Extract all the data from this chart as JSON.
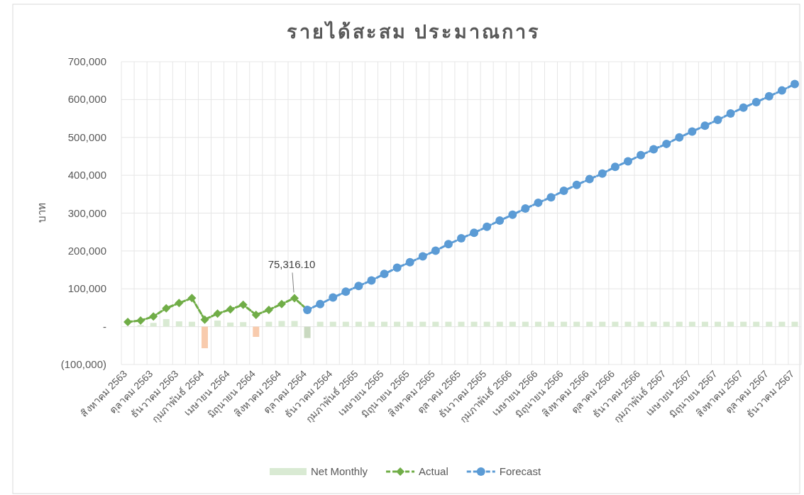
{
  "chart_data": {
    "type": "line",
    "title": "รายได้สะสม ประมาณการ",
    "ylabel": "บาท",
    "categories": [
      "สิงหาคม 2563",
      null,
      "ตุลาคม 2563",
      null,
      "ธันวาคม 2563",
      null,
      "กุมภาพันธ์ 2564",
      null,
      "เมษายน 2564",
      null,
      "มิถุนายน 2564",
      null,
      "สิงหาคม 2564",
      null,
      "ตุลาคม 2564",
      null,
      "ธันวาคม 2564",
      null,
      "กุมภาพันธ์ 2565",
      null,
      "เมษายน 2565",
      null,
      "มิถุนายน 2565",
      null,
      "สิงหาคม 2565",
      null,
      "ตุลาคม 2565",
      null,
      "ธันวาคม 2565",
      null,
      "กุมภาพันธ์ 2566",
      null,
      "เมษายน 2566",
      null,
      "มิถุนายน 2566",
      null,
      "สิงหาคม 2566",
      null,
      "ตุลาคม 2566",
      null,
      "ธันวาคม 2566",
      null,
      "กุมภาพันธ์ 2567",
      null,
      "เมษายน 2567",
      null,
      "มิถุนายน 2567",
      null,
      "สิงหาคม 2567",
      null,
      "ตุลาคม 2567",
      null,
      "ธันวาคม 2567"
    ],
    "series": [
      {
        "name": "Net Monthly",
        "type": "bar",
        "colors": [
          null,
          "#d9ead3",
          "#d9ead3",
          "#d9ead3",
          "#d9ead3",
          "#d9ead3",
          "#f8cbad",
          "#d9ead3",
          "#d9ead3",
          "#d9ead3",
          "#f8cbad",
          "#d9ead3",
          "#d9ead3",
          "#d9ead3",
          "#c9d9c0",
          "#d9ead3",
          "#d9ead3",
          "#d9ead3",
          "#d9ead3",
          "#d9ead3",
          "#d9ead3",
          "#d9ead3",
          "#d9ead3",
          "#d9ead3",
          "#d9ead3",
          "#d9ead3",
          "#d9ead3",
          "#d9ead3",
          "#d9ead3",
          "#d9ead3",
          "#d9ead3",
          "#d9ead3",
          "#d9ead3",
          "#d9ead3",
          "#d9ead3",
          "#d9ead3",
          "#d9ead3",
          "#d9ead3",
          "#d9ead3",
          "#d9ead3",
          "#d9ead3",
          "#d9ead3",
          "#d9ead3",
          "#d9ead3",
          "#d9ead3",
          "#d9ead3",
          "#d9ead3",
          "#d9ead3",
          "#d9ead3",
          "#d9ead3",
          "#d9ead3",
          "#d9ead3",
          "#d9ead3"
        ],
        "color": "#d9ead3",
        "values": [
          null,
          4000,
          10000,
          20000,
          14000,
          13000,
          -57000,
          16000,
          11000,
          12000,
          -27000,
          13000,
          15000,
          15000,
          -30000,
          13000,
          13000,
          13000,
          13000,
          13000,
          13000,
          13000,
          13000,
          13000,
          13000,
          13000,
          13000,
          13000,
          13000,
          13000,
          13000,
          13000,
          13000,
          13000,
          13000,
          13000,
          13000,
          13000,
          13000,
          13000,
          13000,
          13000,
          13000,
          13000,
          13000,
          13000,
          13000,
          13000,
          13000,
          13000,
          13000,
          13000,
          13000
        ]
      },
      {
        "name": "Actual",
        "color": "#70ad47",
        "marker": "diamond",
        "line_style": "dashed",
        "values": [
          12500,
          16300,
          26800,
          48700,
          62400,
          75500,
          18700,
          34300,
          45500,
          58000,
          31300,
          44400,
          59900,
          75316.1,
          44400,
          null,
          null,
          null,
          null,
          null,
          null,
          null,
          null,
          null,
          null,
          null,
          null,
          null,
          null,
          null,
          null,
          null,
          null,
          null,
          null,
          null,
          null,
          null,
          null,
          null,
          null,
          null,
          null,
          null,
          null,
          null,
          null,
          null,
          null,
          null,
          null,
          null,
          null
        ],
        "value_labels": [
          null,
          null,
          null,
          null,
          null,
          null,
          null,
          null,
          null,
          null,
          null,
          null,
          null,
          "75,316.10",
          null,
          null,
          null,
          null,
          null,
          null,
          null,
          null,
          null,
          null,
          null,
          null,
          null,
          null,
          null,
          null,
          null,
          null,
          null,
          null,
          null,
          null,
          null,
          null,
          null,
          null,
          null,
          null,
          null,
          null,
          null,
          null,
          null,
          null,
          null,
          null,
          null,
          null,
          null
        ]
      },
      {
        "name": "Forecast",
        "color": "#5b9bd5",
        "marker": "circle",
        "line_style": "dashed",
        "values": [
          null,
          null,
          null,
          null,
          null,
          null,
          null,
          null,
          null,
          null,
          null,
          null,
          null,
          null,
          44400,
          59800,
          76900,
          92300,
          107700,
          122200,
          139300,
          155600,
          170100,
          185500,
          200900,
          217900,
          233300,
          247900,
          264100,
          280300,
          295700,
          312000,
          327400,
          341900,
          359000,
          374400,
          389700,
          404300,
          422200,
          436800,
          453000,
          468400,
          482900,
          500000,
          515400,
          530800,
          546200,
          563200,
          578600,
          593200,
          608500,
          623900,
          641000
        ]
      }
    ],
    "ylim": [
      -100000,
      700000
    ],
    "yticks": [
      {
        "value": -100000,
        "label": "(100,000)"
      },
      {
        "value": 0,
        "label": "-"
      },
      {
        "value": 100000,
        "label": "100,000"
      },
      {
        "value": 200000,
        "label": "200,000"
      },
      {
        "value": 300000,
        "label": "300,000"
      },
      {
        "value": 400000,
        "label": "400,000"
      },
      {
        "value": 500000,
        "label": "500,000"
      },
      {
        "value": 600000,
        "label": "600,000"
      },
      {
        "value": 700000,
        "label": "700,000"
      }
    ],
    "grid": true,
    "legend": "bottom"
  }
}
